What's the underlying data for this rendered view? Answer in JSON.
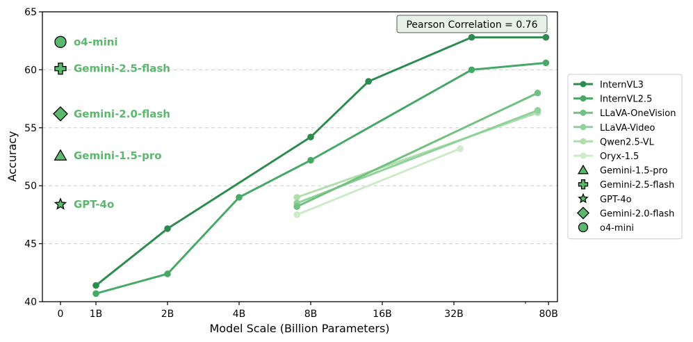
{
  "chart_data": {
    "type": "line",
    "title": "",
    "xlabel": "Model Scale (Billion Parameters)",
    "ylabel": "Accuracy",
    "ylim": [
      40,
      65
    ],
    "yticks": [
      40,
      45,
      50,
      55,
      60,
      65
    ],
    "x_scale": "log2 (0 placed separately for closed-source models)",
    "xticks": [
      {
        "label": "0",
        "value": 0
      },
      {
        "label": "1B",
        "value": 1
      },
      {
        "label": "2B",
        "value": 2
      },
      {
        "label": "4B",
        "value": 4
      },
      {
        "label": "8B",
        "value": 8
      },
      {
        "label": "16B",
        "value": 16
      },
      {
        "label": "32B",
        "value": 32
      },
      {
        "label": "80B",
        "value": 80
      }
    ],
    "grid": "horizontal dashed",
    "annotation": "Pearson Correlation = 0.76",
    "legend_position": "right, outside plot",
    "series": [
      {
        "name": "InternVL3",
        "color": "#2e8b4f",
        "x": [
          1,
          2,
          8,
          14,
          38,
          78
        ],
        "y": [
          41.4,
          46.3,
          54.2,
          59.0,
          62.8,
          62.8
        ]
      },
      {
        "name": "InternVL2.5",
        "color": "#47a867",
        "x": [
          1,
          2,
          4,
          8,
          38,
          78
        ],
        "y": [
          40.7,
          42.4,
          49.0,
          52.2,
          60.0,
          60.6
        ]
      },
      {
        "name": "LLaVA-OneVision",
        "color": "#72c07f",
        "x": [
          7,
          72
        ],
        "y": [
          48.2,
          58.0
        ]
      },
      {
        "name": "LLaVA-Video",
        "color": "#8fd19a",
        "x": [
          7,
          72
        ],
        "y": [
          48.5,
          56.5
        ]
      },
      {
        "name": "Qwen2.5-VL",
        "color": "#b2deae",
        "x": [
          7,
          72
        ],
        "y": [
          49.0,
          56.3
        ]
      },
      {
        "name": "Oryx-1.5",
        "color": "#cdebc8",
        "x": [
          7,
          34
        ],
        "y": [
          47.5,
          53.2
        ]
      }
    ],
    "closed_models": [
      {
        "name": "o4-mini",
        "marker": "circle",
        "x": 0,
        "y": 62.4
      },
      {
        "name": "Gemini-2.5-flash",
        "marker": "plus",
        "x": 0,
        "y": 60.1
      },
      {
        "name": "Gemini-2.0-flash",
        "marker": "diamond",
        "x": 0,
        "y": 56.2
      },
      {
        "name": "Gemini-1.5-pro",
        "marker": "triangle",
        "x": 0,
        "y": 52.6
      },
      {
        "name": "GPT-4o",
        "marker": "star",
        "x": 0,
        "y": 48.4
      }
    ],
    "legend": [
      "InternVL3",
      "InternVL2.5",
      "LLaVA-OneVision",
      "LLaVA-Video",
      "Qwen2.5-VL",
      "Oryx-1.5",
      "Gemini-1.5-pro",
      "Gemini-2.5-flash",
      "GPT-4o",
      "Gemini-2.0-flash",
      "o4-mini"
    ],
    "marker_color": "#5cb86e",
    "label_color": "#5cb86e"
  }
}
